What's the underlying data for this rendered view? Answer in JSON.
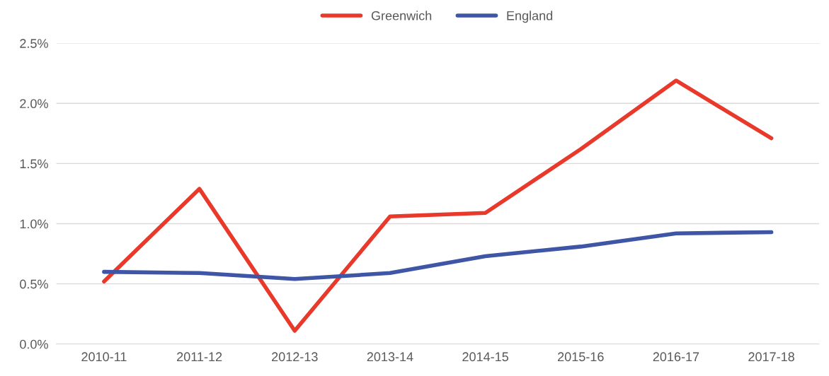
{
  "chart_data": {
    "type": "line",
    "categories": [
      "2010-11",
      "2011-12",
      "2012-13",
      "2013-14",
      "2014-15",
      "2015-16",
      "2016-17",
      "2017-18"
    ],
    "series": [
      {
        "name": "Greenwich",
        "color": "#e8392b",
        "values": [
          0.52,
          1.29,
          0.11,
          1.06,
          1.09,
          1.62,
          2.19,
          1.71
        ]
      },
      {
        "name": "England",
        "color": "#3f55a5",
        "values": [
          0.6,
          0.59,
          0.54,
          0.59,
          0.73,
          0.81,
          0.92,
          0.93
        ]
      }
    ],
    "ylim": [
      0,
      2.5
    ],
    "yticks": [
      {
        "value": 0,
        "label": "0.0%"
      },
      {
        "value": 0.5,
        "label": "0.5%"
      },
      {
        "value": 1,
        "label": "1.0%"
      },
      {
        "value": 1.5,
        "label": "1.5%"
      },
      {
        "value": 2,
        "label": "2.0%"
      },
      {
        "value": 2.5,
        "label": "2.5%"
      }
    ],
    "grid": "y",
    "legend": "top",
    "marker": "none",
    "line_style": "solid"
  }
}
